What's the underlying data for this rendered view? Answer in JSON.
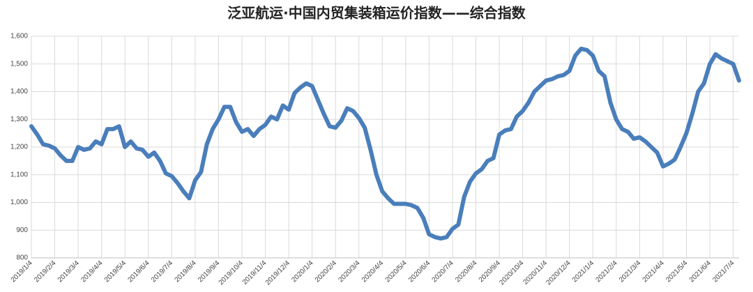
{
  "chart_data": {
    "type": "line",
    "title": "泛亚航运·中国内贸集装箱运价指数——综合指数",
    "categories": [
      "2019/1/4",
      null,
      null,
      null,
      "2019/2/4",
      null,
      null,
      null,
      "2019/3/4",
      null,
      null,
      null,
      "2019/4/4",
      null,
      null,
      null,
      "2019/5/4",
      null,
      null,
      null,
      "2019/6/4",
      null,
      null,
      null,
      "2019/7/4",
      null,
      null,
      null,
      "2019/8/4",
      null,
      null,
      null,
      "2019/9/4",
      null,
      null,
      null,
      "2019/10/4",
      null,
      null,
      null,
      "2019/11/4",
      null,
      null,
      null,
      "2019/12/4",
      null,
      null,
      null,
      "2020/1/4",
      null,
      null,
      null,
      "2020/2/4",
      null,
      null,
      null,
      "2020/3/4",
      null,
      null,
      null,
      "2020/4/4",
      null,
      null,
      null,
      "2020/5/4",
      null,
      null,
      null,
      "2020/6/4",
      null,
      null,
      null,
      "2020/7/4",
      null,
      null,
      null,
      "2020/8/4",
      null,
      null,
      null,
      "2020/9/4",
      null,
      null,
      null,
      "2020/10/4",
      null,
      null,
      null,
      "2020/11/4",
      null,
      null,
      null,
      "2020/12/4",
      null,
      null,
      null,
      "2021/1/4",
      null,
      null,
      null,
      "2021/2/4",
      null,
      null,
      null,
      "2021/3/4",
      null,
      null,
      null,
      "2021/4/4",
      null,
      null,
      null,
      "2021/5/4",
      null,
      null,
      null,
      "2021/6/4",
      null,
      null,
      null,
      "2021/7/4",
      null
    ],
    "series": [
      {
        "color": "#4a7ebb",
        "values": [
          1275,
          1245,
          1210,
          1205,
          1195,
          1170,
          1150,
          1150,
          1200,
          1190,
          1195,
          1220,
          1210,
          1265,
          1265,
          1275,
          1200,
          1220,
          1195,
          1190,
          1165,
          1180,
          1150,
          1105,
          1095,
          1070,
          1040,
          1015,
          1080,
          1110,
          1210,
          1265,
          1300,
          1345,
          1345,
          1290,
          1255,
          1265,
          1240,
          1265,
          1280,
          1310,
          1300,
          1350,
          1335,
          1395,
          1415,
          1430,
          1420,
          1370,
          1320,
          1275,
          1270,
          1295,
          1340,
          1330,
          1305,
          1270,
          1190,
          1100,
          1040,
          1015,
          995,
          995,
          995,
          990,
          980,
          945,
          885,
          875,
          870,
          875,
          905,
          920,
          1020,
          1075,
          1105,
          1120,
          1150,
          1160,
          1245,
          1260,
          1265,
          1310,
          1330,
          1360,
          1400,
          1420,
          1440,
          1445,
          1455,
          1460,
          1475,
          1530,
          1555,
          1550,
          1530,
          1475,
          1455,
          1360,
          1300,
          1265,
          1255,
          1230,
          1235,
          1220,
          1200,
          1180,
          1130,
          1140,
          1155,
          1200,
          1250,
          1320,
          1400,
          1430,
          1500,
          1535,
          1520,
          1510,
          1500,
          1440
        ]
      }
    ],
    "ylim": [
      800,
      1600
    ],
    "yticks": [
      800,
      900,
      {
        "value": 1000,
        "label": "1,000"
      },
      {
        "value": 1100,
        "label": "1,100"
      },
      {
        "value": 1200,
        "label": "1,200"
      },
      {
        "value": 1300,
        "label": "1,300"
      },
      {
        "value": 1400,
        "label": "1,400"
      },
      {
        "value": 1500,
        "label": "1,500"
      },
      {
        "value": 1600,
        "label": "1,600"
      }
    ],
    "grid": true
  }
}
